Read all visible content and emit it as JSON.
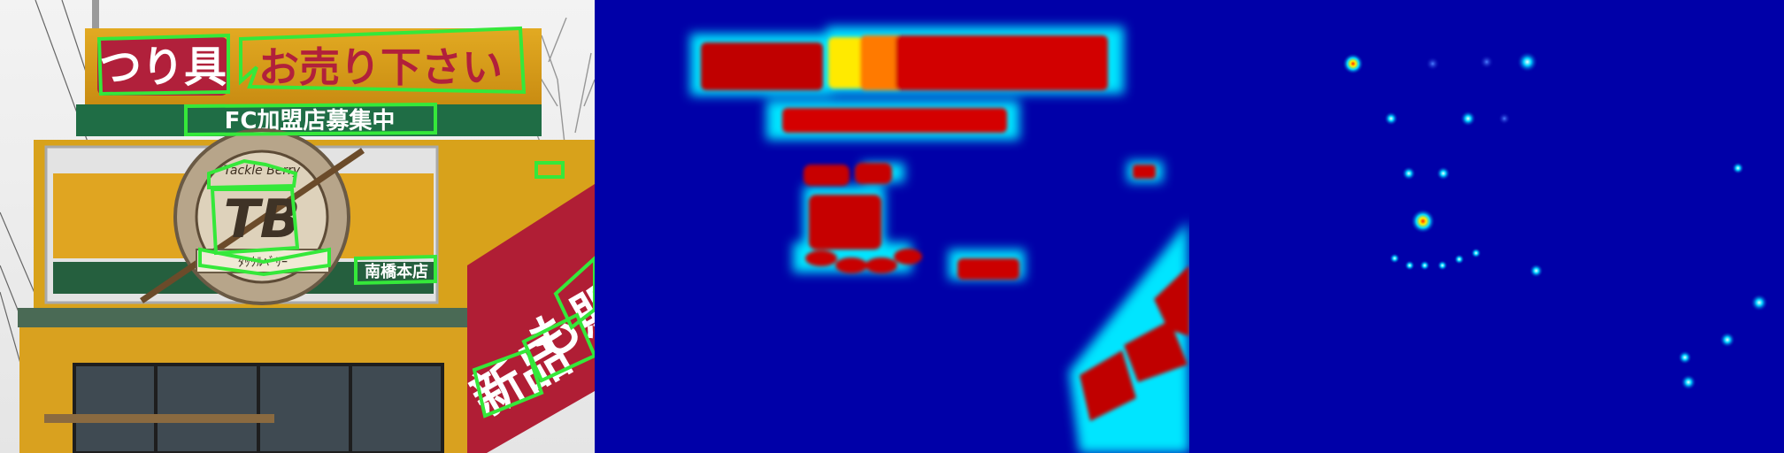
{
  "panels": {
    "photo_name": "storefront-photo",
    "map1_name": "text-region-heatmap",
    "map2_name": "character-center-heatmap"
  },
  "sign_text": {
    "top_left": "つり具",
    "top_right": "お売り下さい",
    "band": "FC加盟店募集中",
    "logo_arc": "Tackle Berry",
    "logo_mark": "TB",
    "logo_small": "ﾀｯｸﾙﾍﾞﾘｰ",
    "store": "南橋本店",
    "side_a": "新品",
    "side_b": "も販"
  },
  "colors": {
    "detection": "#35e83a",
    "heat_bg": "#0000a8",
    "heat_hot": "#c00000",
    "heat_mid": "#ffea00"
  }
}
